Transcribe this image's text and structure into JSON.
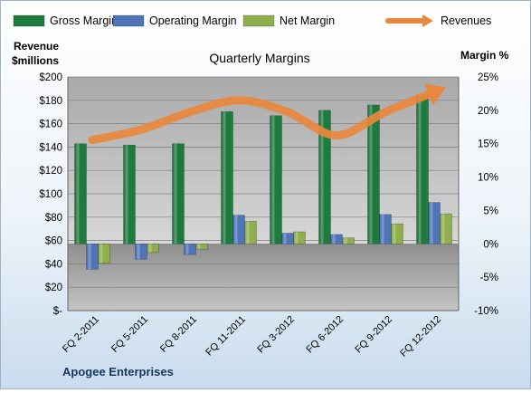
{
  "chart_data": {
    "type": "bar",
    "title": "Quarterly Margins",
    "categories": [
      "FQ 2-2011",
      "FQ 5-2011",
      "FQ 8-2011",
      "FQ 11-2011",
      "FQ 3-2012",
      "FQ 6-2012",
      "FQ 9-2012",
      "FQ 12-2012"
    ],
    "series": [
      {
        "name": "Gross Margin",
        "axis": "right",
        "values": [
          15.0,
          14.8,
          15.0,
          19.8,
          19.2,
          20.0,
          20.8,
          22.3
        ],
        "color": "#1f7a3d"
      },
      {
        "name": "Operating Margin",
        "axis": "right",
        "values": [
          -3.8,
          -2.3,
          -1.6,
          4.3,
          1.6,
          1.4,
          4.4,
          6.2
        ],
        "color": "#4f74b8"
      },
      {
        "name": "Net Margin",
        "axis": "right",
        "values": [
          -2.9,
          -1.3,
          -0.8,
          3.4,
          1.8,
          0.9,
          3.0,
          4.5
        ],
        "color": "#8fae4c"
      },
      {
        "name": "Revenues",
        "axis": "left",
        "type": "line",
        "values": [
          146,
          155,
          170,
          180,
          170,
          150,
          170,
          187
        ],
        "color": "#e9883c"
      }
    ],
    "left_axis": {
      "label_line1": "Revenue",
      "label_line2": "$millions",
      "min": 0,
      "max": 200,
      "step": 20,
      "ticks": [
        "$-",
        "$20",
        "$40",
        "$60",
        "$80",
        "$100",
        "$120",
        "$140",
        "$160",
        "$180",
        "$200"
      ]
    },
    "right_axis": {
      "label": "Margin %",
      "min": -10,
      "max": 25,
      "step": 5,
      "ticks": [
        "-10%",
        "-5%",
        "0%",
        "5%",
        "10%",
        "15%",
        "20%",
        "25%"
      ]
    },
    "grid": true,
    "legend_position": "top",
    "footer": "Apogee Enterprises"
  }
}
